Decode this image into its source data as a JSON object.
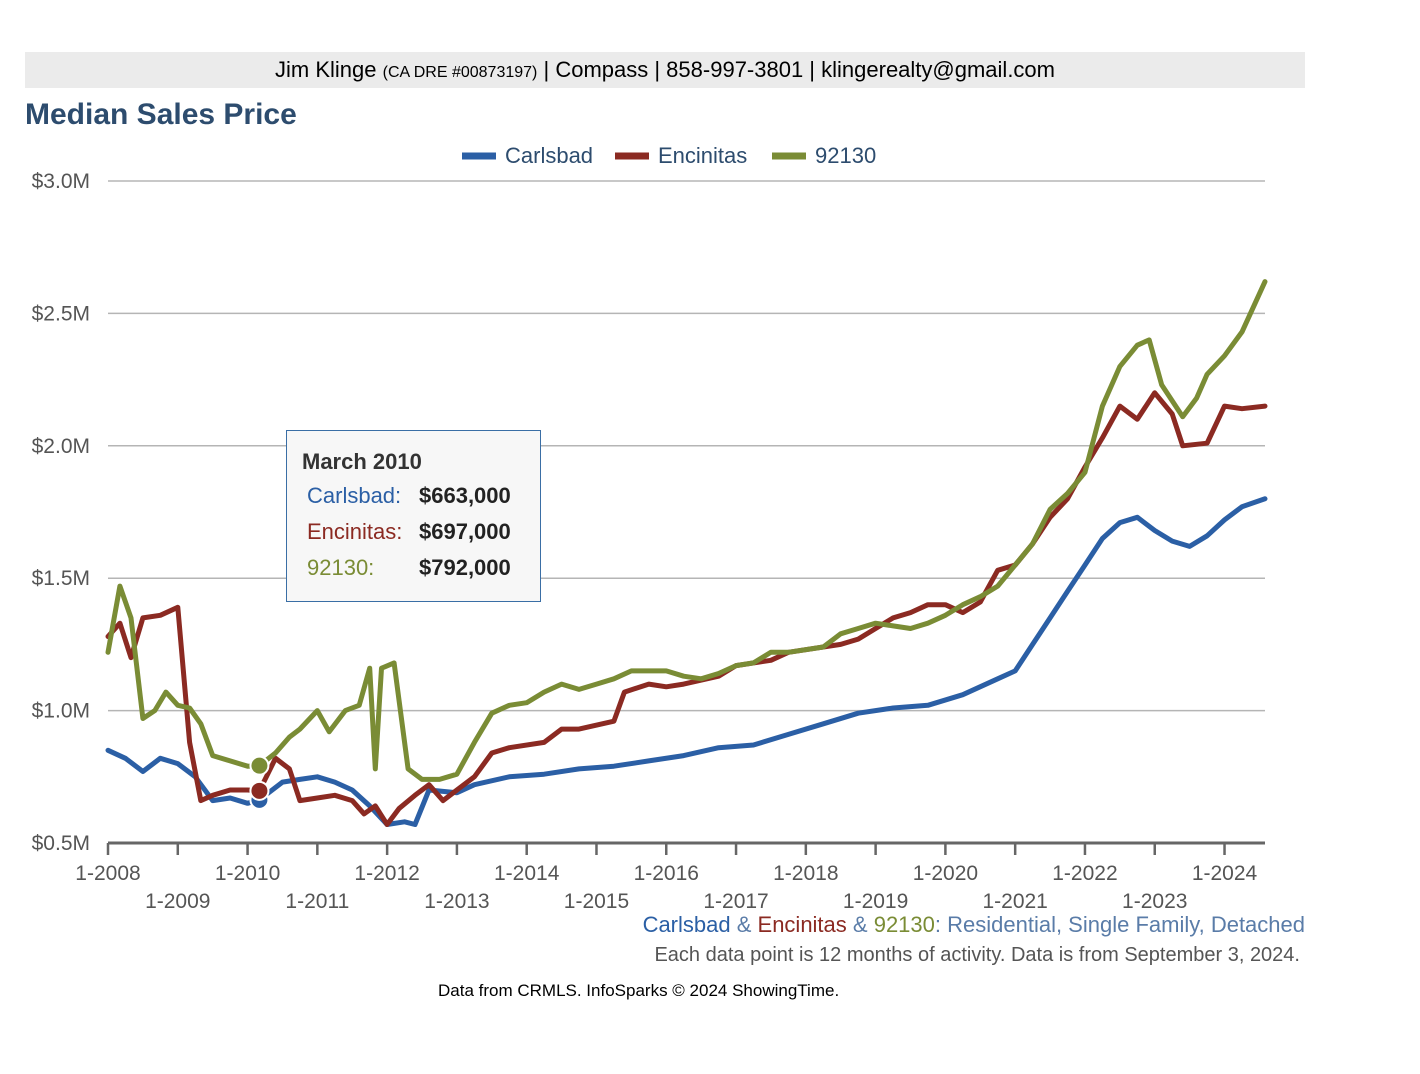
{
  "header": {
    "name": "Jim Klinge",
    "license": "(CA DRE #00873197)",
    "rest": "| Compass | 858-997-3801 | klingerealty@gmail.com"
  },
  "title": "Median Sales Price",
  "colors": {
    "carlsbad": "#2b5fa5",
    "encinitas": "#8b2a22",
    "z92130": "#7a8c35",
    "title": "#2d4c6e"
  },
  "subtitle": {
    "s1": "Carlsbad",
    "amp1": " & ",
    "s2": "Encinitas",
    "amp2": " & ",
    "s3": "92130",
    "rest": ": Residential, Single Family, Detached"
  },
  "note": "Each data point is 12 months of activity. Data is from September 3, 2024.",
  "credit": "Data from CRMLS. InfoSparks © 2024 ShowingTime.",
  "tooltip": {
    "title": "March 2010",
    "rows": [
      {
        "label": "Carlsbad:",
        "value": "$663,000"
      },
      {
        "label": "Encinitas:",
        "value": "$697,000"
      },
      {
        "label": "92130:",
        "value": "$792,000"
      }
    ]
  },
  "chart_data": {
    "type": "line",
    "title": "Median Sales Price",
    "ylim": [
      0.5,
      3.0
    ],
    "y_unit": "millions USD",
    "y_ticks": [
      "$0.5M",
      "$1.0M",
      "$1.5M",
      "$2.0M",
      "$2.5M",
      "$3.0M"
    ],
    "x_ticks_upper": [
      "1-2008",
      "1-2010",
      "1-2012",
      "1-2014",
      "1-2016",
      "1-2018",
      "1-2020",
      "1-2022",
      "1-2024"
    ],
    "x_ticks_lower": [
      "1-2009",
      "1-2011",
      "1-2013",
      "1-2015",
      "1-2017",
      "1-2019",
      "1-2021",
      "1-2023"
    ],
    "x_range": [
      "2008-01",
      "2024-08"
    ],
    "grid": true,
    "legend_position": "top-center",
    "series": [
      {
        "name": "Carlsbad",
        "color": "#2b5fa5",
        "points": [
          [
            2008.0,
            0.85
          ],
          [
            2008.25,
            0.82
          ],
          [
            2008.5,
            0.77
          ],
          [
            2008.75,
            0.82
          ],
          [
            2009.0,
            0.8
          ],
          [
            2009.25,
            0.75
          ],
          [
            2009.5,
            0.66
          ],
          [
            2009.75,
            0.67
          ],
          [
            2010.0,
            0.65
          ],
          [
            2010.17,
            0.663
          ],
          [
            2010.5,
            0.73
          ],
          [
            2010.75,
            0.74
          ],
          [
            2011.0,
            0.75
          ],
          [
            2011.25,
            0.73
          ],
          [
            2011.5,
            0.7
          ],
          [
            2011.75,
            0.64
          ],
          [
            2012.0,
            0.57
          ],
          [
            2012.25,
            0.58
          ],
          [
            2012.4,
            0.57
          ],
          [
            2012.6,
            0.7
          ],
          [
            2013.0,
            0.69
          ],
          [
            2013.25,
            0.72
          ],
          [
            2013.75,
            0.75
          ],
          [
            2014.25,
            0.76
          ],
          [
            2014.75,
            0.78
          ],
          [
            2015.25,
            0.79
          ],
          [
            2015.75,
            0.81
          ],
          [
            2016.25,
            0.83
          ],
          [
            2016.75,
            0.86
          ],
          [
            2017.25,
            0.87
          ],
          [
            2017.75,
            0.91
          ],
          [
            2018.25,
            0.95
          ],
          [
            2018.75,
            0.99
          ],
          [
            2019.25,
            1.01
          ],
          [
            2019.75,
            1.02
          ],
          [
            2020.25,
            1.06
          ],
          [
            2020.75,
            1.12
          ],
          [
            2021.0,
            1.15
          ],
          [
            2021.25,
            1.25
          ],
          [
            2021.5,
            1.35
          ],
          [
            2021.75,
            1.45
          ],
          [
            2022.0,
            1.55
          ],
          [
            2022.25,
            1.65
          ],
          [
            2022.5,
            1.71
          ],
          [
            2022.75,
            1.73
          ],
          [
            2023.0,
            1.68
          ],
          [
            2023.25,
            1.64
          ],
          [
            2023.5,
            1.62
          ],
          [
            2023.75,
            1.66
          ],
          [
            2024.0,
            1.72
          ],
          [
            2024.25,
            1.77
          ],
          [
            2024.58,
            1.8
          ]
        ]
      },
      {
        "name": "Encinitas",
        "color": "#8b2a22",
        "points": [
          [
            2008.0,
            1.28
          ],
          [
            2008.17,
            1.33
          ],
          [
            2008.33,
            1.2
          ],
          [
            2008.5,
            1.35
          ],
          [
            2008.75,
            1.36
          ],
          [
            2009.0,
            1.39
          ],
          [
            2009.17,
            0.88
          ],
          [
            2009.33,
            0.66
          ],
          [
            2009.5,
            0.68
          ],
          [
            2009.75,
            0.7
          ],
          [
            2010.0,
            0.7
          ],
          [
            2010.17,
            0.697
          ],
          [
            2010.4,
            0.82
          ],
          [
            2010.6,
            0.78
          ],
          [
            2010.75,
            0.66
          ],
          [
            2011.0,
            0.67
          ],
          [
            2011.25,
            0.68
          ],
          [
            2011.5,
            0.66
          ],
          [
            2011.67,
            0.61
          ],
          [
            2011.83,
            0.64
          ],
          [
            2012.0,
            0.57
          ],
          [
            2012.17,
            0.63
          ],
          [
            2012.4,
            0.68
          ],
          [
            2012.6,
            0.72
          ],
          [
            2012.8,
            0.66
          ],
          [
            2013.0,
            0.7
          ],
          [
            2013.25,
            0.75
          ],
          [
            2013.5,
            0.84
          ],
          [
            2013.75,
            0.86
          ],
          [
            2014.25,
            0.88
          ],
          [
            2014.5,
            0.93
          ],
          [
            2014.75,
            0.93
          ],
          [
            2015.25,
            0.96
          ],
          [
            2015.4,
            1.07
          ],
          [
            2015.75,
            1.1
          ],
          [
            2016.0,
            1.09
          ],
          [
            2016.25,
            1.1
          ],
          [
            2016.75,
            1.13
          ],
          [
            2017.0,
            1.17
          ],
          [
            2017.5,
            1.19
          ],
          [
            2017.75,
            1.22
          ],
          [
            2018.25,
            1.24
          ],
          [
            2018.5,
            1.25
          ],
          [
            2018.75,
            1.27
          ],
          [
            2019.0,
            1.31
          ],
          [
            2019.25,
            1.35
          ],
          [
            2019.5,
            1.37
          ],
          [
            2019.75,
            1.4
          ],
          [
            2020.0,
            1.4
          ],
          [
            2020.25,
            1.37
          ],
          [
            2020.5,
            1.41
          ],
          [
            2020.75,
            1.53
          ],
          [
            2021.0,
            1.55
          ],
          [
            2021.25,
            1.63
          ],
          [
            2021.5,
            1.73
          ],
          [
            2021.75,
            1.8
          ],
          [
            2022.0,
            1.92
          ],
          [
            2022.25,
            2.03
          ],
          [
            2022.5,
            2.15
          ],
          [
            2022.75,
            2.1
          ],
          [
            2023.0,
            2.2
          ],
          [
            2023.25,
            2.12
          ],
          [
            2023.4,
            2.0
          ],
          [
            2023.75,
            2.01
          ],
          [
            2024.0,
            2.15
          ],
          [
            2024.25,
            2.14
          ],
          [
            2024.58,
            2.15
          ]
        ]
      },
      {
        "name": "92130",
        "color": "#7a8c35",
        "points": [
          [
            2008.0,
            1.22
          ],
          [
            2008.17,
            1.47
          ],
          [
            2008.33,
            1.35
          ],
          [
            2008.5,
            0.97
          ],
          [
            2008.67,
            1.0
          ],
          [
            2008.83,
            1.07
          ],
          [
            2009.0,
            1.02
          ],
          [
            2009.17,
            1.01
          ],
          [
            2009.33,
            0.95
          ],
          [
            2009.5,
            0.83
          ],
          [
            2009.75,
            0.81
          ],
          [
            2010.0,
            0.79
          ],
          [
            2010.17,
            0.792
          ],
          [
            2010.4,
            0.84
          ],
          [
            2010.6,
            0.9
          ],
          [
            2010.75,
            0.93
          ],
          [
            2011.0,
            1.0
          ],
          [
            2011.17,
            0.92
          ],
          [
            2011.4,
            1.0
          ],
          [
            2011.6,
            1.02
          ],
          [
            2011.75,
            1.16
          ],
          [
            2011.83,
            0.78
          ],
          [
            2011.92,
            1.16
          ],
          [
            2012.1,
            1.18
          ],
          [
            2012.3,
            0.78
          ],
          [
            2012.5,
            0.74
          ],
          [
            2012.75,
            0.74
          ],
          [
            2013.0,
            0.76
          ],
          [
            2013.25,
            0.88
          ],
          [
            2013.5,
            0.99
          ],
          [
            2013.75,
            1.02
          ],
          [
            2014.0,
            1.03
          ],
          [
            2014.25,
            1.07
          ],
          [
            2014.5,
            1.1
          ],
          [
            2014.75,
            1.08
          ],
          [
            2015.0,
            1.1
          ],
          [
            2015.25,
            1.12
          ],
          [
            2015.5,
            1.15
          ],
          [
            2016.0,
            1.15
          ],
          [
            2016.25,
            1.13
          ],
          [
            2016.5,
            1.12
          ],
          [
            2016.75,
            1.14
          ],
          [
            2017.0,
            1.17
          ],
          [
            2017.25,
            1.18
          ],
          [
            2017.5,
            1.22
          ],
          [
            2017.75,
            1.22
          ],
          [
            2018.25,
            1.24
          ],
          [
            2018.5,
            1.29
          ],
          [
            2018.75,
            1.31
          ],
          [
            2019.0,
            1.33
          ],
          [
            2019.25,
            1.32
          ],
          [
            2019.5,
            1.31
          ],
          [
            2019.75,
            1.33
          ],
          [
            2020.0,
            1.36
          ],
          [
            2020.25,
            1.4
          ],
          [
            2020.5,
            1.43
          ],
          [
            2020.75,
            1.47
          ],
          [
            2021.0,
            1.55
          ],
          [
            2021.25,
            1.63
          ],
          [
            2021.5,
            1.76
          ],
          [
            2021.75,
            1.82
          ],
          [
            2022.0,
            1.9
          ],
          [
            2022.25,
            2.15
          ],
          [
            2022.5,
            2.3
          ],
          [
            2022.75,
            2.38
          ],
          [
            2022.92,
            2.4
          ],
          [
            2023.1,
            2.23
          ],
          [
            2023.4,
            2.11
          ],
          [
            2023.6,
            2.18
          ],
          [
            2023.75,
            2.27
          ],
          [
            2024.0,
            2.34
          ],
          [
            2024.25,
            2.43
          ],
          [
            2024.58,
            2.62
          ]
        ]
      }
    ]
  }
}
